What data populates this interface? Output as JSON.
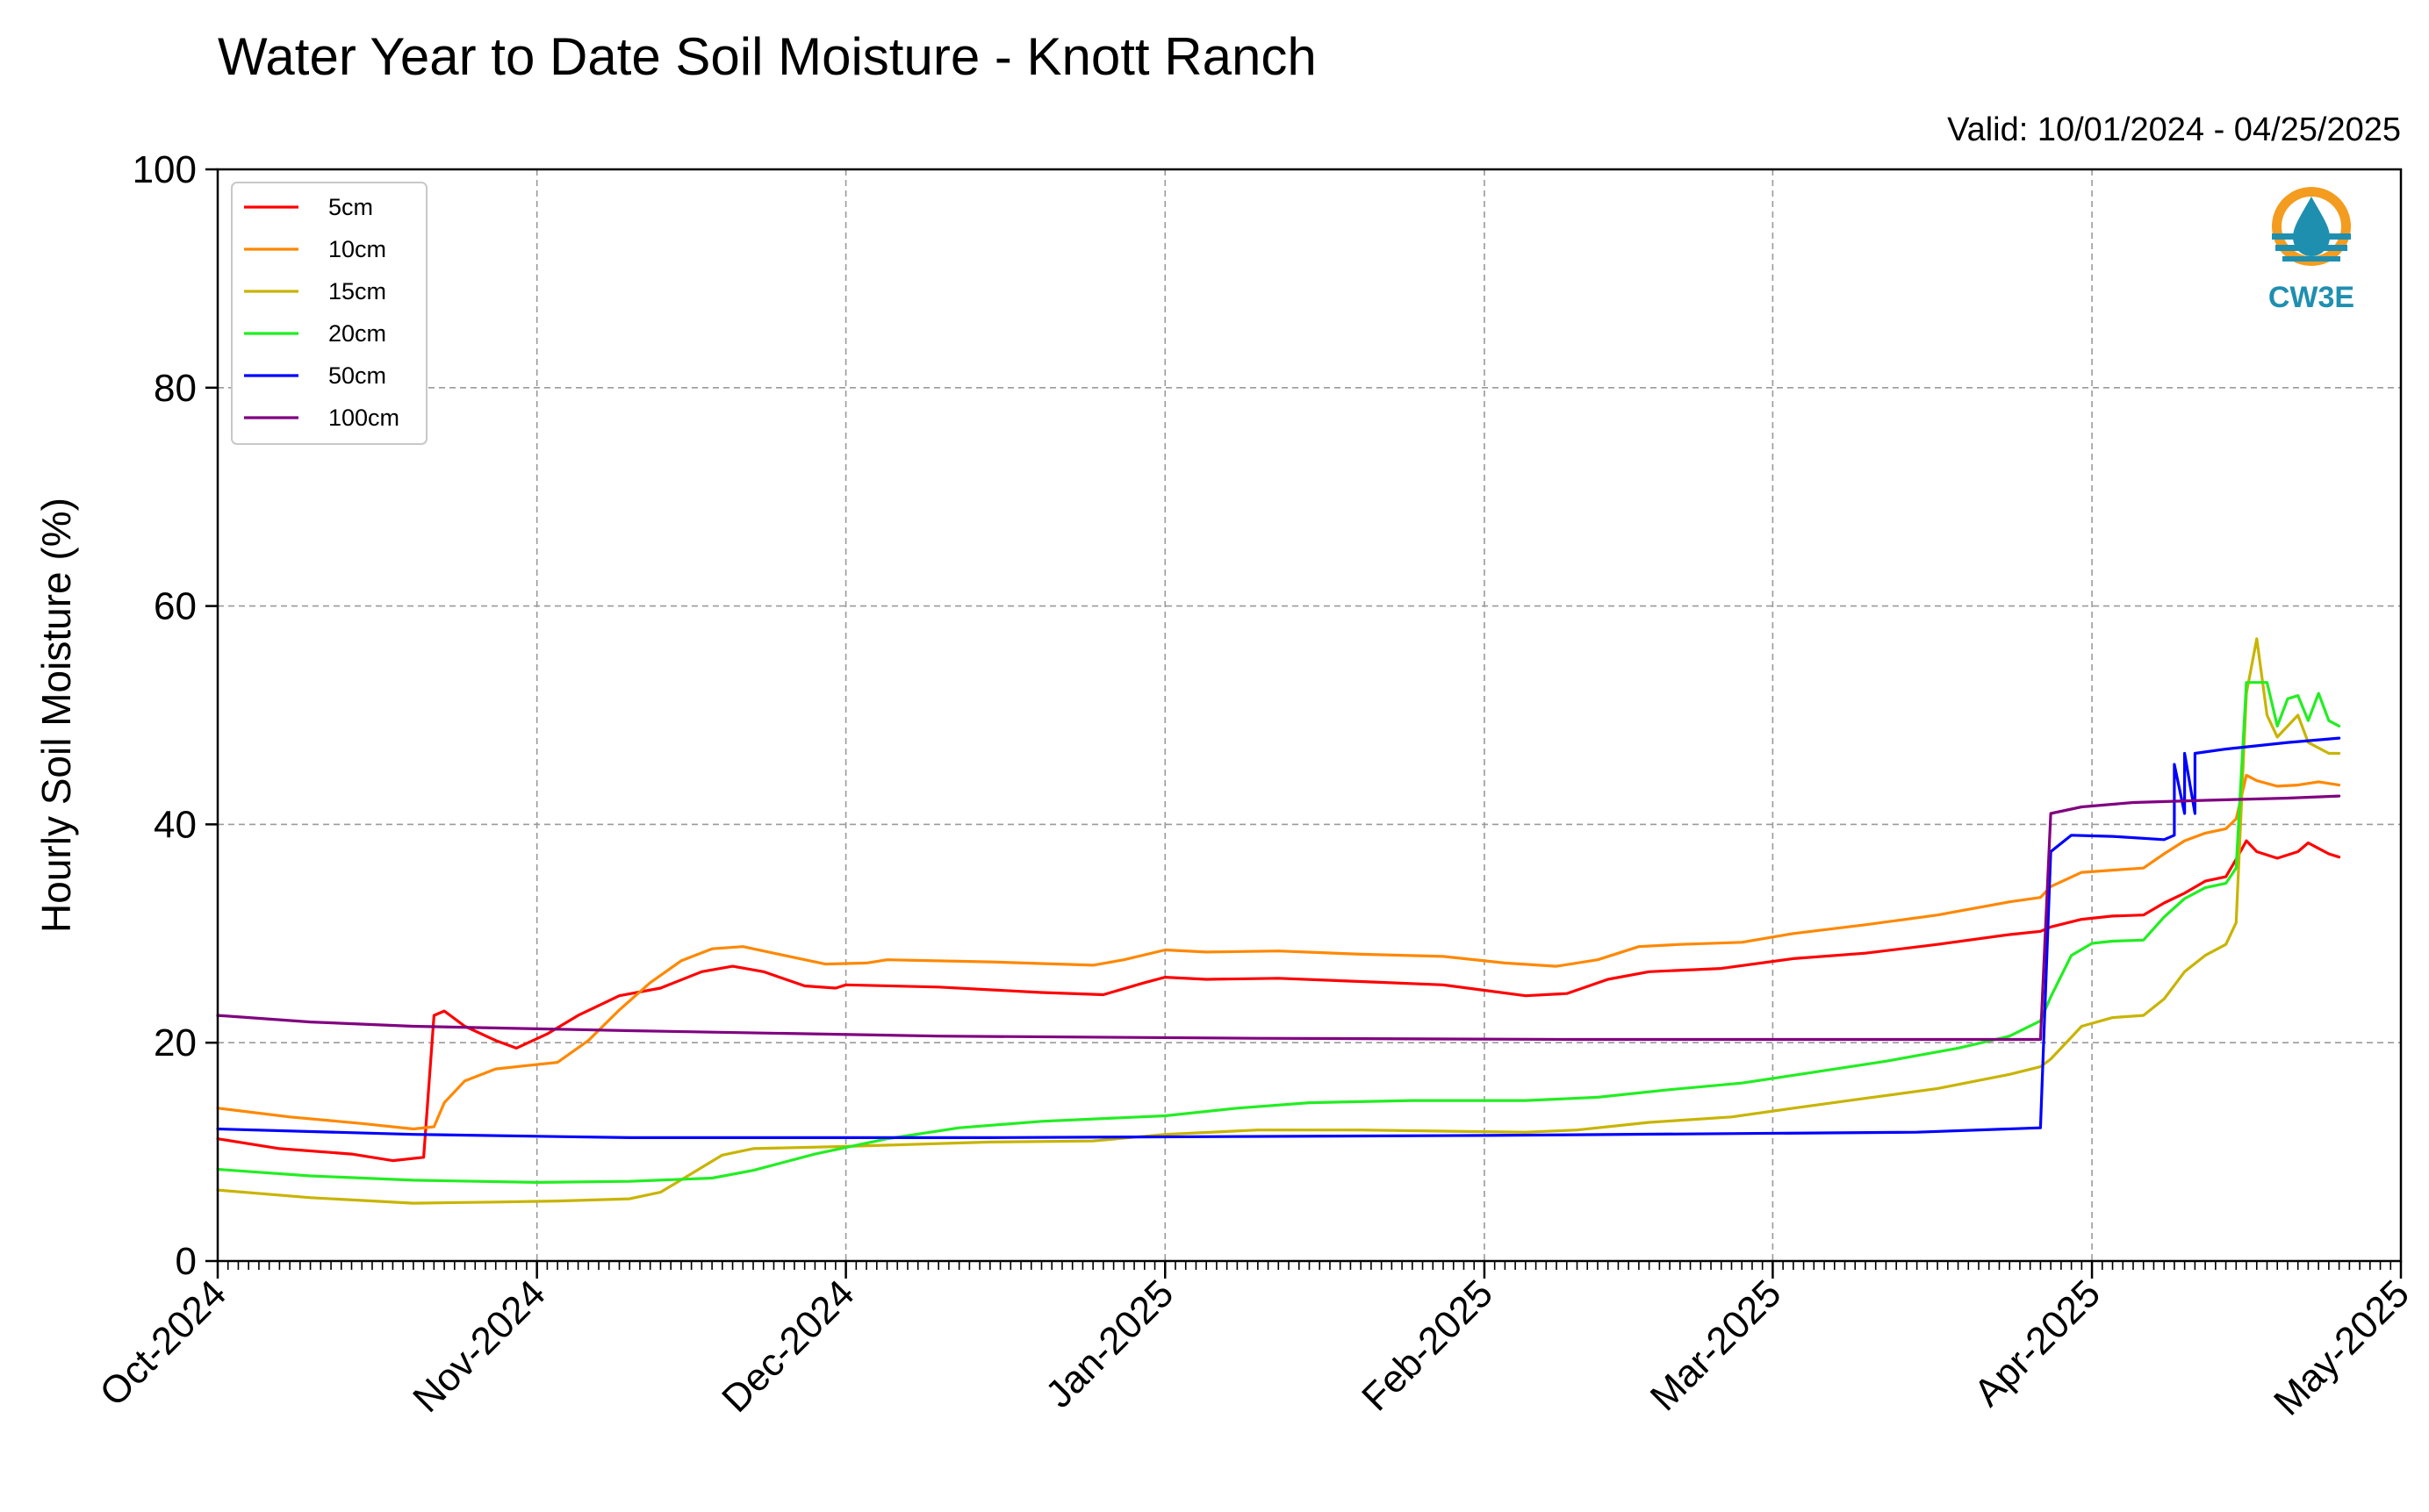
{
  "chart_data": {
    "type": "line",
    "title": "Water Year to Date Soil Moisture - Knott Ranch",
    "valid_text": "Valid: 10/01/2024 - 04/25/2025",
    "xlabel": "",
    "ylabel": "Hourly Soil Moisture (%)",
    "ylim": [
      0,
      100
    ],
    "yticks": [
      "0",
      "20",
      "40",
      "60",
      "80",
      "100"
    ],
    "xlim": [
      "2024-10-01",
      "2025-05-01"
    ],
    "xticks": [
      {
        "date": "2024-10-01",
        "label": "Oct-2024"
      },
      {
        "date": "2024-11-01",
        "label": "Nov-2024"
      },
      {
        "date": "2024-12-01",
        "label": "Dec-2024"
      },
      {
        "date": "2025-01-01",
        "label": "Jan-2025"
      },
      {
        "date": "2025-02-01",
        "label": "Feb-2025"
      },
      {
        "date": "2025-03-01",
        "label": "Mar-2025"
      },
      {
        "date": "2025-04-01",
        "label": "Apr-2025"
      },
      {
        "date": "2025-05-01",
        "label": "May-2025"
      }
    ],
    "grid": true,
    "legend_position": "top-left",
    "series": [
      {
        "name": "5cm",
        "color": "#ff0000",
        "points": [
          [
            "2024-10-01",
            11.2
          ],
          [
            "2024-10-07",
            10.3
          ],
          [
            "2024-10-14",
            9.8
          ],
          [
            "2024-10-18",
            9.2
          ],
          [
            "2024-10-21",
            9.5
          ],
          [
            "2024-10-22",
            22.5
          ],
          [
            "2024-10-23",
            22.9
          ],
          [
            "2024-10-25",
            21.5
          ],
          [
            "2024-10-28",
            20.2
          ],
          [
            "2024-10-30",
            19.5
          ],
          [
            "2024-11-02",
            20.8
          ],
          [
            "2024-11-05",
            22.5
          ],
          [
            "2024-11-09",
            24.3
          ],
          [
            "2024-11-13",
            25.0
          ],
          [
            "2024-11-17",
            26.5
          ],
          [
            "2024-11-20",
            27.0
          ],
          [
            "2024-11-23",
            26.5
          ],
          [
            "2024-11-27",
            25.2
          ],
          [
            "2024-11-30",
            25.0
          ],
          [
            "2024-12-01",
            25.3
          ],
          [
            "2024-12-10",
            25.1
          ],
          [
            "2024-12-20",
            24.6
          ],
          [
            "2024-12-26",
            24.4
          ],
          [
            "2024-12-30",
            25.5
          ],
          [
            "2025-01-01",
            26.0
          ],
          [
            "2025-01-05",
            25.8
          ],
          [
            "2025-01-12",
            25.9
          ],
          [
            "2025-01-20",
            25.6
          ],
          [
            "2025-01-28",
            25.3
          ],
          [
            "2025-02-01",
            24.8
          ],
          [
            "2025-02-05",
            24.3
          ],
          [
            "2025-02-09",
            24.5
          ],
          [
            "2025-02-13",
            25.8
          ],
          [
            "2025-02-17",
            26.5
          ],
          [
            "2025-02-24",
            26.8
          ],
          [
            "2025-03-03",
            27.7
          ],
          [
            "2025-03-10",
            28.2
          ],
          [
            "2025-03-17",
            29.0
          ],
          [
            "2025-03-24",
            29.9
          ],
          [
            "2025-03-27",
            30.2
          ],
          [
            "2025-03-28",
            30.6
          ],
          [
            "2025-03-31",
            31.3
          ],
          [
            "2025-04-03",
            31.6
          ],
          [
            "2025-04-06",
            31.7
          ],
          [
            "2025-04-08",
            32.8
          ],
          [
            "2025-04-10",
            33.7
          ],
          [
            "2025-04-12",
            34.8
          ],
          [
            "2025-04-14",
            35.2
          ],
          [
            "2025-04-15",
            36.8
          ],
          [
            "2025-04-16",
            38.5
          ],
          [
            "2025-04-17",
            37.5
          ],
          [
            "2025-04-19",
            36.9
          ],
          [
            "2025-04-21",
            37.5
          ],
          [
            "2025-04-22",
            38.3
          ],
          [
            "2025-04-23",
            37.8
          ],
          [
            "2025-04-24",
            37.3
          ],
          [
            "2025-04-25",
            37.0
          ]
        ]
      },
      {
        "name": "10cm",
        "color": "#ff8800",
        "points": [
          [
            "2024-10-01",
            14.0
          ],
          [
            "2024-10-08",
            13.2
          ],
          [
            "2024-10-15",
            12.6
          ],
          [
            "2024-10-20",
            12.1
          ],
          [
            "2024-10-22",
            12.3
          ],
          [
            "2024-10-23",
            14.5
          ],
          [
            "2024-10-25",
            16.5
          ],
          [
            "2024-10-28",
            17.6
          ],
          [
            "2024-10-31",
            17.9
          ],
          [
            "2024-11-03",
            18.2
          ],
          [
            "2024-11-06",
            20.2
          ],
          [
            "2024-11-09",
            23.0
          ],
          [
            "2024-11-12",
            25.5
          ],
          [
            "2024-11-15",
            27.5
          ],
          [
            "2024-11-18",
            28.6
          ],
          [
            "2024-11-21",
            28.8
          ],
          [
            "2024-11-25",
            28.0
          ],
          [
            "2024-11-29",
            27.2
          ],
          [
            "2024-12-03",
            27.3
          ],
          [
            "2024-12-05",
            27.6
          ],
          [
            "2024-12-15",
            27.4
          ],
          [
            "2024-12-25",
            27.1
          ],
          [
            "2024-12-28",
            27.6
          ],
          [
            "2025-01-01",
            28.5
          ],
          [
            "2025-01-05",
            28.3
          ],
          [
            "2025-01-12",
            28.4
          ],
          [
            "2025-01-20",
            28.1
          ],
          [
            "2025-01-28",
            27.9
          ],
          [
            "2025-02-03",
            27.3
          ],
          [
            "2025-02-08",
            27.0
          ],
          [
            "2025-02-12",
            27.6
          ],
          [
            "2025-02-16",
            28.8
          ],
          [
            "2025-02-20",
            29.0
          ],
          [
            "2025-02-26",
            29.2
          ],
          [
            "2025-03-03",
            30.0
          ],
          [
            "2025-03-10",
            30.8
          ],
          [
            "2025-03-17",
            31.7
          ],
          [
            "2025-03-24",
            32.9
          ],
          [
            "2025-03-27",
            33.3
          ],
          [
            "2025-03-28",
            34.3
          ],
          [
            "2025-03-31",
            35.6
          ],
          [
            "2025-04-03",
            35.8
          ],
          [
            "2025-04-06",
            36.0
          ],
          [
            "2025-04-08",
            37.3
          ],
          [
            "2025-04-10",
            38.5
          ],
          [
            "2025-04-12",
            39.2
          ],
          [
            "2025-04-14",
            39.6
          ],
          [
            "2025-04-15",
            40.5
          ],
          [
            "2025-04-16",
            44.5
          ],
          [
            "2025-04-17",
            44.0
          ],
          [
            "2025-04-19",
            43.5
          ],
          [
            "2025-04-21",
            43.6
          ],
          [
            "2025-04-23",
            43.9
          ],
          [
            "2025-04-25",
            43.6
          ]
        ]
      },
      {
        "name": "15cm",
        "color": "#c8b400",
        "points": [
          [
            "2024-10-01",
            6.5
          ],
          [
            "2024-10-10",
            5.8
          ],
          [
            "2024-10-20",
            5.3
          ],
          [
            "2024-10-28",
            5.4
          ],
          [
            "2024-11-03",
            5.5
          ],
          [
            "2024-11-10",
            5.7
          ],
          [
            "2024-11-13",
            6.3
          ],
          [
            "2024-11-16",
            8.0
          ],
          [
            "2024-11-19",
            9.7
          ],
          [
            "2024-11-22",
            10.3
          ],
          [
            "2024-12-01",
            10.5
          ],
          [
            "2024-12-15",
            10.9
          ],
          [
            "2024-12-25",
            11.0
          ],
          [
            "2025-01-01",
            11.6
          ],
          [
            "2025-01-10",
            12.0
          ],
          [
            "2025-01-20",
            12.0
          ],
          [
            "2025-01-28",
            11.9
          ],
          [
            "2025-02-05",
            11.8
          ],
          [
            "2025-02-10",
            12.0
          ],
          [
            "2025-02-17",
            12.7
          ],
          [
            "2025-02-25",
            13.2
          ],
          [
            "2025-03-03",
            14.0
          ],
          [
            "2025-03-10",
            14.9
          ],
          [
            "2025-03-17",
            15.8
          ],
          [
            "2025-03-24",
            17.1
          ],
          [
            "2025-03-27",
            17.8
          ],
          [
            "2025-03-28",
            18.5
          ],
          [
            "2025-03-31",
            21.5
          ],
          [
            "2025-04-03",
            22.3
          ],
          [
            "2025-04-06",
            22.5
          ],
          [
            "2025-04-08",
            24.0
          ],
          [
            "2025-04-10",
            26.5
          ],
          [
            "2025-04-12",
            28.0
          ],
          [
            "2025-04-14",
            29.0
          ],
          [
            "2025-04-15",
            31.0
          ],
          [
            "2025-04-16",
            52.0
          ],
          [
            "2025-04-17",
            57.0
          ],
          [
            "2025-04-18",
            50.0
          ],
          [
            "2025-04-19",
            48.0
          ],
          [
            "2025-04-21",
            50.0
          ],
          [
            "2025-04-22",
            47.5
          ],
          [
            "2025-04-24",
            46.5
          ],
          [
            "2025-04-25",
            46.5
          ]
        ]
      },
      {
        "name": "20cm",
        "color": "#22ee22",
        "points": [
          [
            "2024-10-01",
            8.4
          ],
          [
            "2024-10-10",
            7.8
          ],
          [
            "2024-10-20",
            7.4
          ],
          [
            "2024-11-01",
            7.2
          ],
          [
            "2024-11-10",
            7.3
          ],
          [
            "2024-11-18",
            7.6
          ],
          [
            "2024-11-22",
            8.3
          ],
          [
            "2024-11-28",
            9.8
          ],
          [
            "2024-12-05",
            11.2
          ],
          [
            "2024-12-12",
            12.2
          ],
          [
            "2024-12-20",
            12.8
          ],
          [
            "2025-01-01",
            13.3
          ],
          [
            "2025-01-08",
            14.0
          ],
          [
            "2025-01-15",
            14.5
          ],
          [
            "2025-01-25",
            14.7
          ],
          [
            "2025-02-05",
            14.7
          ],
          [
            "2025-02-12",
            15.0
          ],
          [
            "2025-02-19",
            15.7
          ],
          [
            "2025-02-26",
            16.3
          ],
          [
            "2025-03-05",
            17.3
          ],
          [
            "2025-03-12",
            18.3
          ],
          [
            "2025-03-19",
            19.5
          ],
          [
            "2025-03-24",
            20.6
          ],
          [
            "2025-03-27",
            22.0
          ],
          [
            "2025-03-28",
            24.2
          ],
          [
            "2025-03-30",
            28.0
          ],
          [
            "2025-04-01",
            29.1
          ],
          [
            "2025-04-03",
            29.3
          ],
          [
            "2025-04-06",
            29.4
          ],
          [
            "2025-04-08",
            31.5
          ],
          [
            "2025-04-10",
            33.2
          ],
          [
            "2025-04-12",
            34.2
          ],
          [
            "2025-04-14",
            34.6
          ],
          [
            "2025-04-15",
            36.0
          ],
          [
            "2025-04-16",
            53.0
          ],
          [
            "2025-04-18",
            53.0
          ],
          [
            "2025-04-19",
            49.0
          ],
          [
            "2025-04-20",
            51.5
          ],
          [
            "2025-04-21",
            51.8
          ],
          [
            "2025-04-22",
            49.5
          ],
          [
            "2025-04-23",
            52.0
          ],
          [
            "2025-04-24",
            49.5
          ],
          [
            "2025-04-25",
            49.0
          ]
        ]
      },
      {
        "name": "50cm",
        "color": "#0000ff",
        "points": [
          [
            "2024-10-01",
            12.1
          ],
          [
            "2024-10-20",
            11.6
          ],
          [
            "2024-11-10",
            11.3
          ],
          [
            "2024-12-15",
            11.3
          ],
          [
            "2025-02-01",
            11.5
          ],
          [
            "2025-03-15",
            11.8
          ],
          [
            "2025-03-27",
            12.2
          ],
          [
            "2025-03-28",
            37.5
          ],
          [
            "2025-03-30",
            39.0
          ],
          [
            "2025-04-03",
            38.9
          ],
          [
            "2025-04-08",
            38.6
          ],
          [
            "2025-04-09",
            39.0
          ],
          [
            "2025-04-09",
            45.5
          ],
          [
            "2025-04-10",
            41.0
          ],
          [
            "2025-04-10",
            46.5
          ],
          [
            "2025-04-11",
            41.0
          ],
          [
            "2025-04-11",
            46.5
          ],
          [
            "2025-04-14",
            46.9
          ],
          [
            "2025-04-20",
            47.5
          ],
          [
            "2025-04-25",
            47.9
          ]
        ]
      },
      {
        "name": "100cm",
        "color": "#800080",
        "points": [
          [
            "2024-10-01",
            22.5
          ],
          [
            "2024-10-10",
            21.9
          ],
          [
            "2024-10-20",
            21.5
          ],
          [
            "2024-11-10",
            21.1
          ],
          [
            "2024-12-10",
            20.6
          ],
          [
            "2025-01-10",
            20.4
          ],
          [
            "2025-02-10",
            20.3
          ],
          [
            "2025-03-27",
            20.3
          ],
          [
            "2025-03-28",
            41.0
          ],
          [
            "2025-03-31",
            41.6
          ],
          [
            "2025-04-05",
            42.0
          ],
          [
            "2025-04-12",
            42.2
          ],
          [
            "2025-04-20",
            42.4
          ],
          [
            "2025-04-25",
            42.6
          ]
        ]
      }
    ]
  },
  "logo": {
    "text": "CW3E",
    "colors": {
      "orange": "#f39c1f",
      "teal": "#1f8fb0"
    }
  }
}
